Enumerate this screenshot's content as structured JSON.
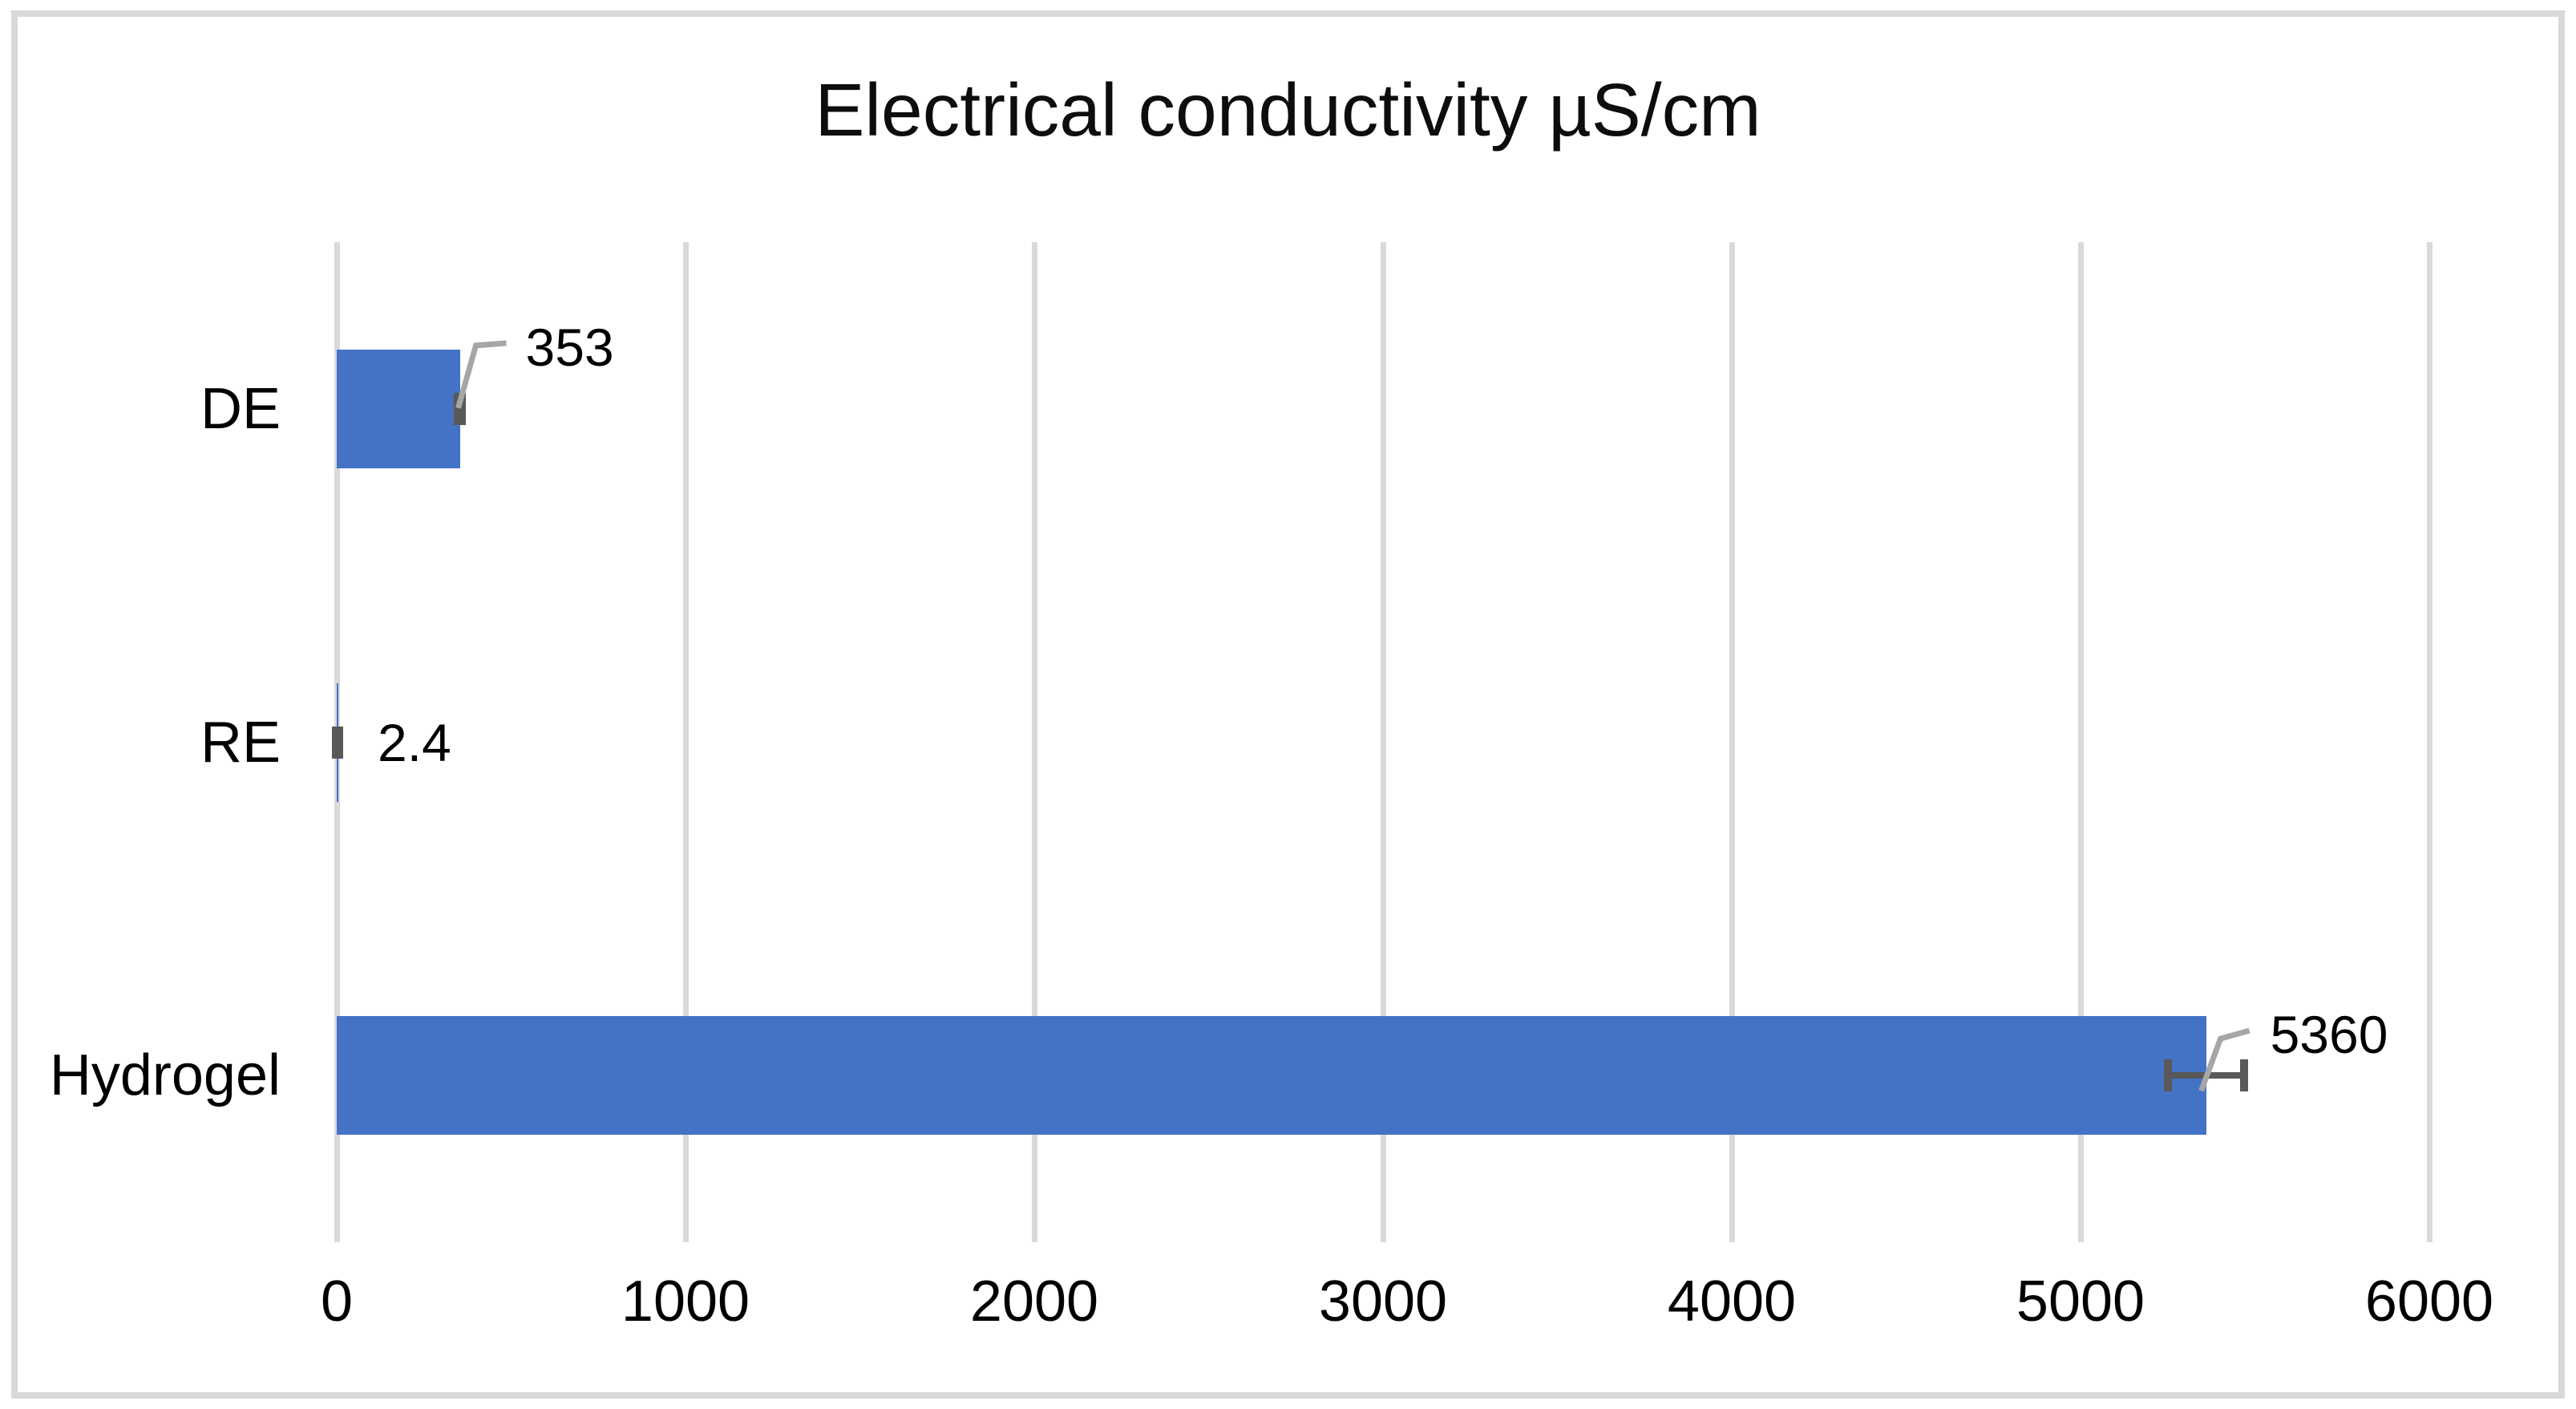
{
  "chart_data": {
    "type": "bar",
    "orientation": "horizontal",
    "title": "Electrical conductivity µS/cm",
    "categories": [
      "DE",
      "RE",
      "Hydrogel"
    ],
    "values": [
      353,
      2.4,
      5360
    ],
    "data_labels": [
      "353",
      "2.4",
      "5360"
    ],
    "error_bars": [
      5,
      5,
      110
    ],
    "leader_lines": [
      true,
      false,
      true
    ],
    "xlim": [
      0,
      6000
    ],
    "xticks": [
      0,
      1000,
      2000,
      3000,
      4000,
      5000,
      6000
    ],
    "xtick_labels": [
      "0",
      "1000",
      "2000",
      "3000",
      "4000",
      "5000",
      "6000"
    ],
    "grid": true,
    "legend": false,
    "xlabel": "",
    "ylabel": "",
    "colors": {
      "bar": "#4472C4",
      "gridline": "#D9D9D9",
      "frame": "#D9D9D9",
      "error_bar": "#595959",
      "leader_line": "#A6A6A6",
      "text": "#000000",
      "background": "#FFFFFF"
    }
  }
}
